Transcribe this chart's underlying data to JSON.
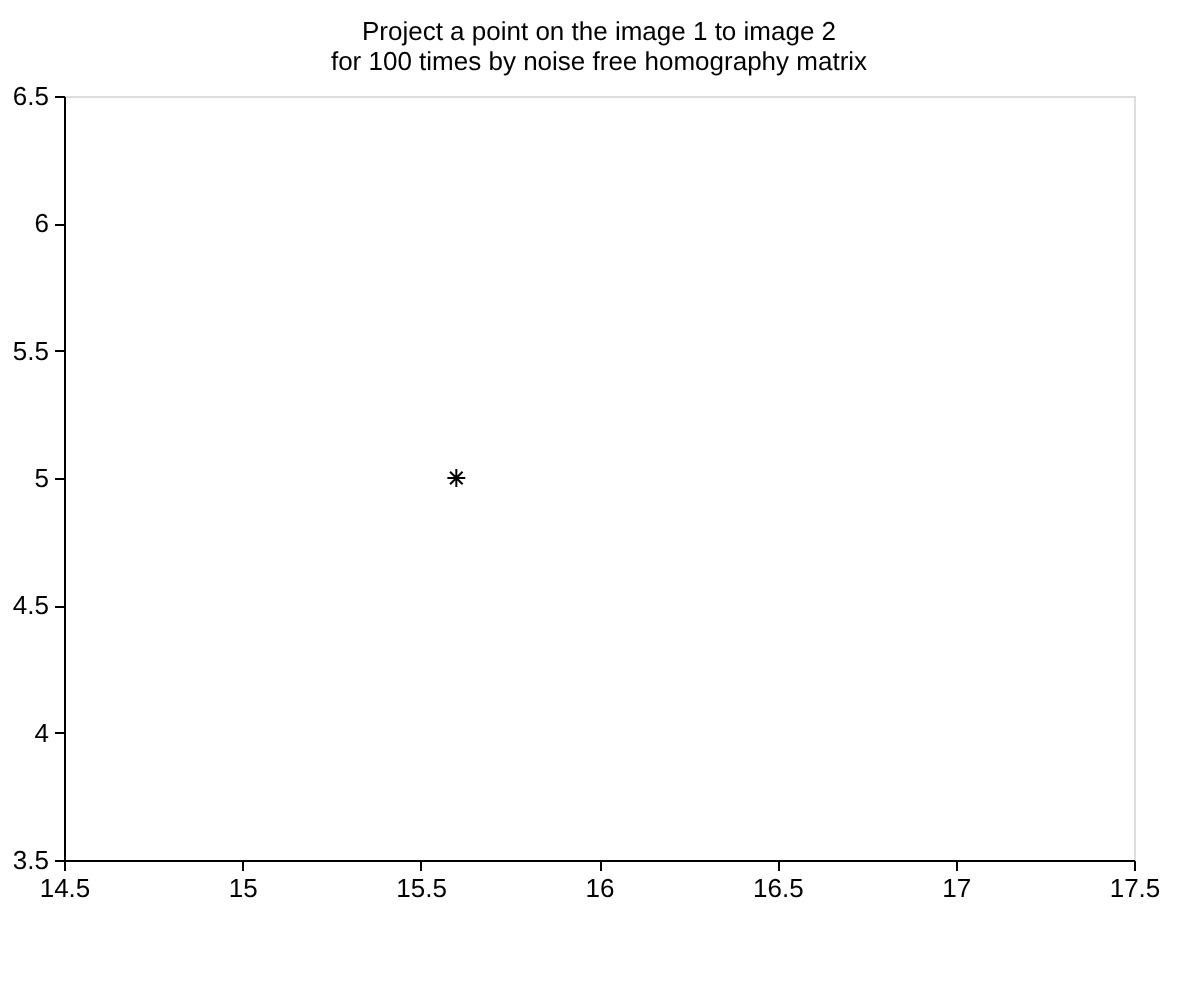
{
  "chart_data": {
    "type": "scatter",
    "title": "Project a point on the image 1 to image 2\nfor 100 times by noise free homography matrix",
    "x": [
      15.6
    ],
    "values": [
      5.0
    ],
    "color": "#000000",
    "marker": "cross",
    "xlim": [
      14.5,
      17.5
    ],
    "xticks": [
      14.5,
      15,
      15.5,
      16,
      16.5,
      17,
      17.5
    ],
    "ylim": [
      3.5,
      6.5
    ],
    "yticks": [
      3.5,
      4,
      4.5,
      5,
      5.5,
      6,
      6.5
    ],
    "grid": false
  }
}
